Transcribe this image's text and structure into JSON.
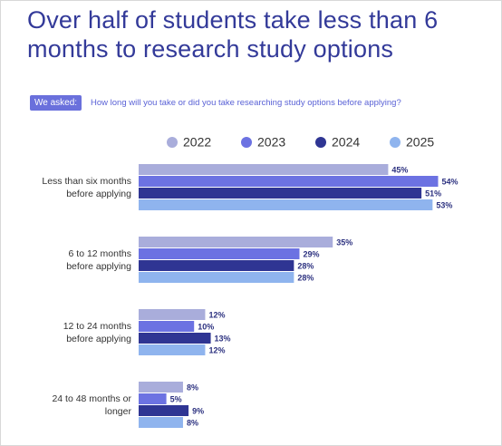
{
  "chart_data": {
    "type": "bar",
    "orientation": "horizontal",
    "title": "Over half of students take less than 6\nmonths to research study options",
    "badge": "We asked:",
    "question": "How long will you take or did you take researching study options before applying?",
    "categories": [
      "Less than six months\nbefore applying",
      "6 to 12 months\nbefore applying",
      "12 to 24 months\nbefore applying",
      "24 to 48 months or\nlonger"
    ],
    "series": [
      {
        "name": "2022",
        "color": "#a9addb",
        "values": [
          45,
          35,
          12,
          8
        ],
        "value_labels": [
          "45%",
          "35%",
          "12%",
          "8%"
        ]
      },
      {
        "name": "2023",
        "color": "#6c72e2",
        "values": [
          54,
          29,
          10,
          5
        ],
        "value_labels": [
          "54%",
          "29%",
          "10%",
          "5%"
        ]
      },
      {
        "name": "2024",
        "color": "#2f3593",
        "values": [
          51,
          28,
          13,
          9
        ],
        "value_labels": [
          "51%",
          "28%",
          "13%",
          "9%"
        ]
      },
      {
        "name": "2025",
        "color": "#8fb4ee",
        "values": [
          53,
          28,
          12,
          8
        ],
        "value_labels": [
          "53%",
          "28%",
          "12%",
          "8%"
        ]
      }
    ]
  }
}
